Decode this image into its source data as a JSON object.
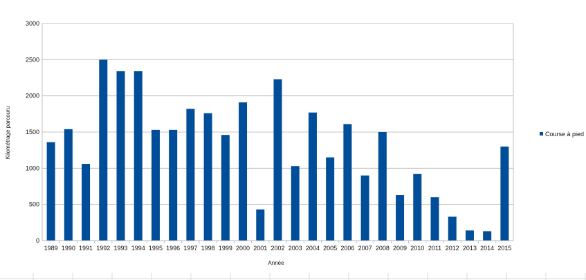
{
  "chart_data": {
    "type": "bar",
    "title": "",
    "xlabel": "Année",
    "ylabel": "Kilométrage  parcouru",
    "ylim": [
      0,
      3000
    ],
    "yticks": [
      0,
      500,
      1000,
      1500,
      2000,
      2500,
      3000
    ],
    "grid": true,
    "legend_position": "right",
    "categories": [
      "1989",
      "1990",
      "1991",
      "1992",
      "1993",
      "1994",
      "1995",
      "1996",
      "1997",
      "1998",
      "1999",
      "2000",
      "2001",
      "2002",
      "2003",
      "2004",
      "2005",
      "2006",
      "2007",
      "2008",
      "2009",
      "2010",
      "2011",
      "2012",
      "2013",
      "2014",
      "2015"
    ],
    "series": [
      {
        "name": "Course à pied",
        "color": "#004d99",
        "values": [
          1360,
          1540,
          1060,
          2500,
          2340,
          2340,
          1530,
          1530,
          1820,
          1760,
          1460,
          1910,
          430,
          2230,
          1030,
          1770,
          1150,
          1610,
          900,
          1500,
          630,
          920,
          600,
          330,
          140,
          130,
          1300
        ]
      }
    ]
  }
}
